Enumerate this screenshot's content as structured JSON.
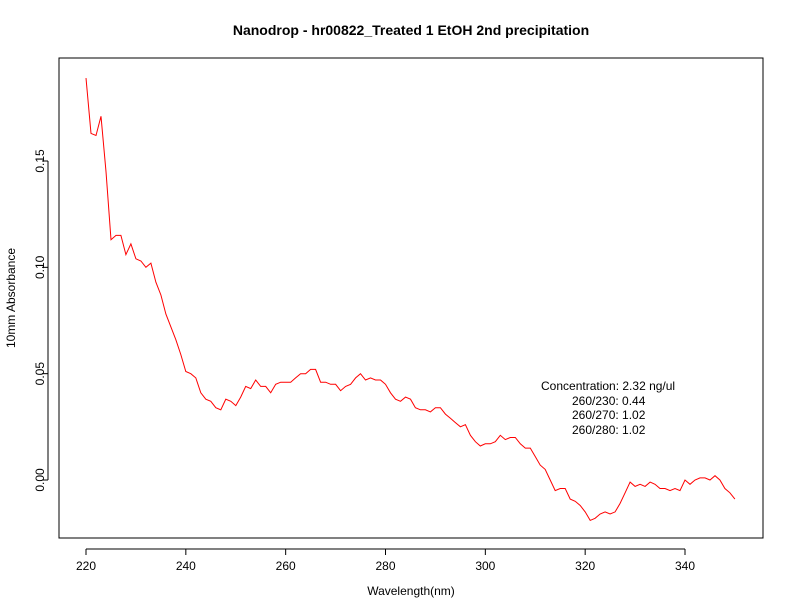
{
  "chart_data": {
    "type": "line",
    "title": "Nanodrop - hr00822_Treated 1  EtOH 2nd precipitation",
    "xlabel": "Wavelength(nm)",
    "ylabel": "10mm Absorbance",
    "xlim": [
      220,
      350
    ],
    "ylim": [
      -0.02,
      0.19
    ],
    "xticks": [
      220,
      240,
      260,
      280,
      300,
      320,
      340
    ],
    "xtick_labels": [
      "220",
      "240",
      "260",
      "280",
      "300",
      "320",
      "340"
    ],
    "yticks": [
      0,
      0.05,
      0.1,
      0.15
    ],
    "ytick_labels": [
      "0.00",
      "0.05",
      "0.10",
      "0.15"
    ],
    "grid": false,
    "series": [
      {
        "name": "absorbance",
        "color": "#ff0000",
        "x_start": 220,
        "x_step": 1,
        "values": [
          0.189,
          0.163,
          0.162,
          0.171,
          0.145,
          0.113,
          0.115,
          0.115,
          0.106,
          0.111,
          0.104,
          0.103,
          0.1,
          0.102,
          0.093,
          0.087,
          0.078,
          0.072,
          0.066,
          0.059,
          0.051,
          0.05,
          0.048,
          0.041,
          0.038,
          0.037,
          0.034,
          0.033,
          0.038,
          0.037,
          0.035,
          0.039,
          0.044,
          0.043,
          0.047,
          0.044,
          0.044,
          0.041,
          0.045,
          0.046,
          0.046,
          0.046,
          0.048,
          0.05,
          0.05,
          0.052,
          0.052,
          0.046,
          0.046,
          0.045,
          0.045,
          0.042,
          0.044,
          0.045,
          0.048,
          0.05,
          0.047,
          0.048,
          0.047,
          0.047,
          0.045,
          0.041,
          0.038,
          0.037,
          0.039,
          0.038,
          0.034,
          0.033,
          0.033,
          0.032,
          0.034,
          0.034,
          0.031,
          0.029,
          0.027,
          0.025,
          0.026,
          0.021,
          0.018,
          0.016,
          0.017,
          0.017,
          0.018,
          0.021,
          0.019,
          0.02,
          0.02,
          0.017,
          0.015,
          0.015,
          0.011,
          0.007,
          0.005,
          0.0,
          -0.005,
          -0.004,
          -0.004,
          -0.009,
          -0.01,
          -0.012,
          -0.015,
          -0.019,
          -0.018,
          -0.016,
          -0.015,
          -0.016,
          -0.015,
          -0.011,
          -0.006,
          -0.001,
          -0.003,
          -0.002,
          -0.003,
          -0.001,
          -0.002,
          -0.004,
          -0.004,
          -0.005,
          -0.004,
          -0.005,
          0.0,
          -0.002,
          0.0,
          0.001,
          0.001,
          0.0,
          0.002,
          0.0,
          -0.004,
          -0.006,
          -0.009
        ]
      }
    ],
    "annotations": [
      "Concentration: 2.32 ng/ul",
      "260/230: 0.44",
      "260/270: 1.02",
      "260/280: 1.02"
    ]
  }
}
